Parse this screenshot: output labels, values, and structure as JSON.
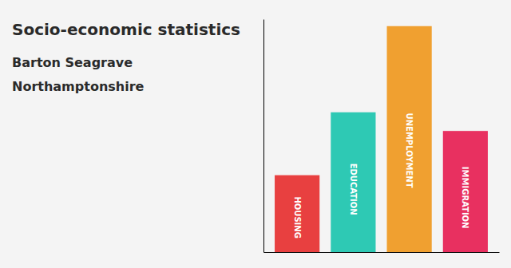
{
  "chart_data": {
    "type": "bar",
    "title": "Socio-economic statistics",
    "subtitle": [
      "Barton Seagrave",
      "Northamptonshire"
    ],
    "categories": [
      "HOUSING",
      "EDUCATION",
      "UNEMPLOYMENT",
      "IMMIGRATION"
    ],
    "values": [
      0.33,
      0.6,
      0.97,
      0.52
    ],
    "colors": [
      "#E84040",
      "#2EC9B4",
      "#F0A030",
      "#E83060"
    ],
    "ylim": [
      0,
      1
    ],
    "tick_labels": false,
    "grid": false
  }
}
